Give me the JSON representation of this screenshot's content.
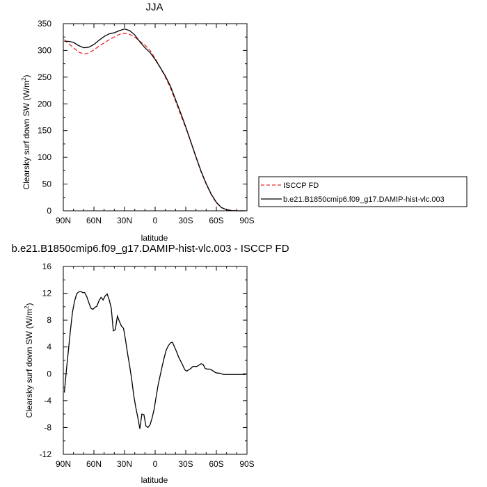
{
  "chart_data": [
    {
      "type": "line",
      "title": "JJA",
      "xlabel": "latitude",
      "ylabel": "Clearsky surf down SW (W/m²)",
      "ylabel_main": "Clearsky surf down SW (W/m",
      "ylabel_sup": "2",
      "ylabel_end": ")",
      "xlim": [
        90,
        -90
      ],
      "ylim": [
        0,
        350
      ],
      "xticks": [
        90,
        60,
        30,
        0,
        -30,
        -60,
        -90
      ],
      "xtick_labels": [
        "90N",
        "60N",
        "30N",
        "0",
        "30S",
        "60S",
        "90S"
      ],
      "yticks": [
        0,
        50,
        100,
        150,
        200,
        250,
        300,
        350
      ],
      "ytick_labels": [
        "0",
        "50",
        "100",
        "150",
        "200",
        "250",
        "300",
        "350"
      ],
      "legend_position": "right",
      "series": [
        {
          "name": "ISCCP FD",
          "color": "#e8282a",
          "dash": "dashed",
          "x": [
            89,
            85,
            80,
            75,
            70,
            65,
            60,
            55,
            50,
            45,
            40,
            35,
            30,
            25,
            20,
            15,
            10,
            5,
            0,
            -5,
            -10,
            -15,
            -20,
            -25,
            -30,
            -35,
            -40,
            -45,
            -50,
            -55,
            -60,
            -65,
            -70,
            -75,
            -80,
            -85,
            -89
          ],
          "y": [
            320,
            313,
            305,
            297,
            293,
            295,
            301,
            308,
            314,
            320,
            325,
            330,
            332,
            330,
            325,
            317,
            310,
            300,
            285,
            268,
            250,
            230,
            205,
            180,
            155,
            128,
            100,
            73,
            50,
            30,
            15,
            6,
            2,
            0.5,
            0,
            0,
            0
          ]
        },
        {
          "name": "b.e21.B1850cmip6.f09_g17.DAMIP-hist-vlc.003",
          "color": "#000000",
          "dash": "solid",
          "x": [
            89,
            85,
            80,
            75,
            70,
            65,
            60,
            55,
            50,
            45,
            40,
            35,
            30,
            25,
            20,
            15,
            10,
            5,
            0,
            -5,
            -10,
            -15,
            -20,
            -25,
            -30,
            -35,
            -40,
            -45,
            -50,
            -55,
            -60,
            -65,
            -70,
            -75,
            -80,
            -85,
            -89
          ],
          "y": [
            317,
            317,
            315,
            309,
            305,
            306,
            311,
            319,
            326,
            331,
            333,
            337,
            340,
            337,
            329,
            316,
            305,
            296,
            283,
            268,
            252,
            233,
            208,
            183,
            157,
            129,
            101,
            74,
            51,
            31,
            16,
            6,
            2,
            0.5,
            0,
            0,
            0
          ]
        }
      ]
    },
    {
      "type": "line",
      "title": "b.e21.B1850cmip6.f09_g17.DAMIP-hist-vlc.003 - ISCCP FD",
      "xlabel": "latitude",
      "ylabel": "Clearsky surf down SW (W/m²)",
      "ylabel_main": "Clearsky surf down SW (W/m",
      "ylabel_sup": "2",
      "ylabel_end": ")",
      "xlim": [
        90,
        -90
      ],
      "ylim": [
        -12,
        16
      ],
      "xticks": [
        90,
        60,
        30,
        0,
        -30,
        -60,
        -90
      ],
      "xtick_labels": [
        "90N",
        "60N",
        "30N",
        "0",
        "30S",
        "60S",
        "90S"
      ],
      "yticks": [
        -12,
        -8,
        -4,
        0,
        4,
        8,
        12,
        16
      ],
      "ytick_labels": [
        "-12",
        "-8",
        "-4",
        "0",
        "4",
        "8",
        "12",
        "16"
      ],
      "series": [
        {
          "color": "#000000",
          "dash": "solid",
          "x": [
            89,
            87,
            85,
            83,
            81,
            79,
            77,
            75,
            73,
            71,
            69,
            67,
            65,
            63,
            61,
            59,
            57,
            55,
            53,
            51,
            49,
            47,
            45,
            43,
            41,
            39,
            37,
            35,
            33,
            31,
            29,
            27,
            25,
            23,
            21,
            19,
            17,
            15,
            13,
            11,
            9,
            7,
            5,
            3,
            1,
            -1,
            -3,
            -5,
            -7,
            -9,
            -11,
            -13,
            -15,
            -17,
            -19,
            -21,
            -23,
            -25,
            -27,
            -29,
            -31,
            -33,
            -35,
            -37,
            -39,
            -41,
            -43,
            -45,
            -47,
            -49,
            -51,
            -53,
            -55,
            -57,
            -59,
            -61,
            -63,
            -65,
            -67,
            -69,
            -71,
            -73,
            -75,
            -77,
            -79,
            -81,
            -83,
            -85,
            -87,
            -89
          ],
          "y": [
            -2.8,
            0.5,
            3.5,
            6.5,
            9.2,
            10.8,
            11.9,
            12.2,
            12.3,
            12.1,
            12.1,
            11.5,
            10.6,
            9.8,
            9.6,
            9.9,
            10.1,
            10.9,
            11.4,
            11.0,
            11.6,
            11.9,
            11.0,
            9.8,
            6.4,
            6.6,
            8.6,
            7.8,
            7.1,
            6.8,
            5.0,
            3.0,
            1.2,
            -0.8,
            -3.2,
            -5.0,
            -6.5,
            -8.2,
            -6.0,
            -6.1,
            -7.8,
            -8.0,
            -7.6,
            -6.6,
            -5.3,
            -3.4,
            -1.6,
            -0.2,
            1.2,
            2.5,
            3.6,
            4.2,
            4.6,
            4.7,
            4.0,
            3.3,
            2.5,
            1.9,
            1.3,
            0.6,
            0.4,
            0.6,
            0.8,
            1.1,
            1.1,
            1.1,
            1.3,
            1.5,
            1.4,
            0.8,
            0.7,
            0.7,
            0.6,
            0.4,
            0.2,
            0.1,
            0.1,
            0.0,
            -0.1,
            -0.1,
            -0.1,
            -0.1,
            -0.1,
            -0.1,
            -0.1,
            -0.1,
            -0.1,
            -0.1,
            -0.1,
            -0.1
          ]
        }
      ]
    }
  ]
}
